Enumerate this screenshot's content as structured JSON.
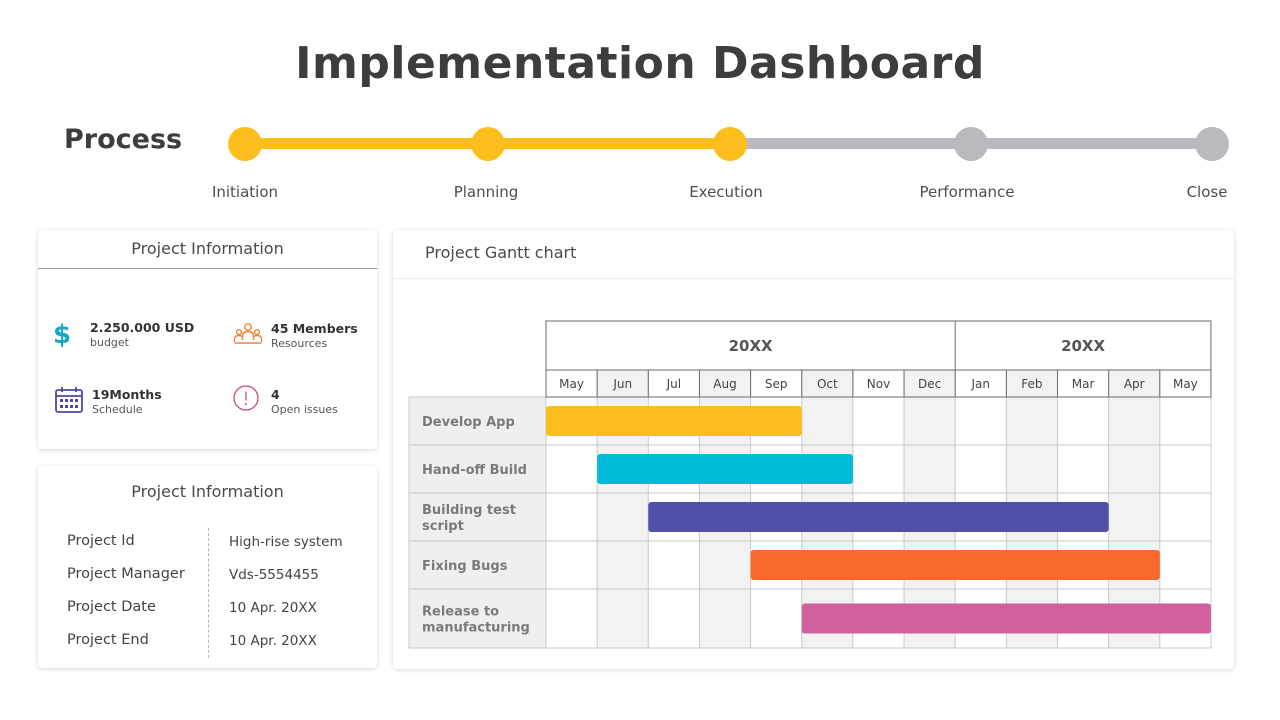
{
  "title": "Implementation Dashboard",
  "process": {
    "label": "Process",
    "done_color": "#fbbe1c",
    "todo_color": "#b8babd",
    "steps": [
      {
        "label": "Initiation",
        "done": true
      },
      {
        "label": "Planning",
        "done": true
      },
      {
        "label": "Execution",
        "done": true
      },
      {
        "label": "Performance",
        "done": false
      },
      {
        "label": "Close",
        "done": false
      }
    ]
  },
  "project_info": {
    "title": "Project Information",
    "items": [
      {
        "icon": "dollar-icon",
        "value": "2.250.000 USD",
        "caption": "budget",
        "color": "#1aa7c7"
      },
      {
        "icon": "team-icon",
        "value": "45 Members",
        "caption": "Resources",
        "color": "#f0833a"
      },
      {
        "icon": "calendar-icon",
        "value": "19Months",
        "caption": "Schedule",
        "color": "#4b4aa0"
      },
      {
        "icon": "alert-icon",
        "value": "4",
        "caption": "Open issues",
        "color": "#c84b8a"
      }
    ]
  },
  "project_details": {
    "title": "Project Information",
    "rows": [
      {
        "key": "Project Id",
        "value": "High-rise system"
      },
      {
        "key": "Project Manager",
        "value": "Vds-5554455"
      },
      {
        "key": "Project Date",
        "value": "10 Apr. 20XX"
      },
      {
        "key": "Project End",
        "value": "10 Apr. 20XX"
      }
    ]
  },
  "gantt": {
    "title": "Project Gantt chart",
    "years": [
      {
        "label": "20XX",
        "months": 8
      },
      {
        "label": "20XX",
        "months": 5
      }
    ],
    "months": [
      "May",
      "Jun",
      "Jul",
      "Aug",
      "Sep",
      "Oct",
      "Nov",
      "Dec",
      "Jan",
      "Feb",
      "Mar",
      "Apr",
      "May"
    ],
    "tasks": [
      {
        "name": "Develop App",
        "start": 0,
        "end": 5,
        "color": "#fbbe1c"
      },
      {
        "name": "Hand-off Build",
        "start": 1,
        "end": 6,
        "color": "#00bcd8"
      },
      {
        "name": "Building test script",
        "start": 2,
        "end": 11,
        "color": "#5150a8"
      },
      {
        "name": "Fixing Bugs",
        "start": 4,
        "end": 12,
        "color": "#f76a2c"
      },
      {
        "name": "Release to manufacturing",
        "start": 5,
        "end": 13,
        "color": "#d0609d"
      }
    ]
  }
}
